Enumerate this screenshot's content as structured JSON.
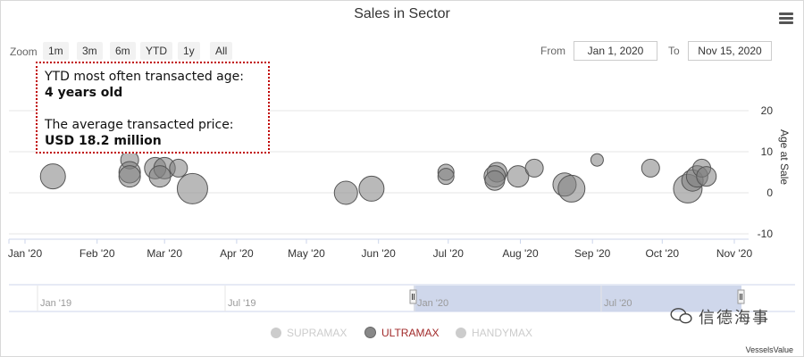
{
  "title": "Sales in Sector",
  "zoom": {
    "label": "Zoom",
    "buttons": [
      "1m",
      "3m",
      "6m",
      "YTD",
      "1y",
      "All"
    ]
  },
  "range": {
    "from_label": "From",
    "from_value": "Jan 1, 2020",
    "to_label": "To",
    "to_value": "Nov 15, 2020"
  },
  "annotation": {
    "line1": "YTD most often transacted age:",
    "line2": "4 years old",
    "line3": "The average transacted price:",
    "line4": "USD 18.2 million"
  },
  "navigator": {
    "labels": [
      "Jan '19",
      "Jul '19",
      "Jan '20",
      "Jul '20"
    ]
  },
  "legend": [
    {
      "name": "SUPRAMAX",
      "color": "#cccccc",
      "active": false
    },
    {
      "name": "ULTRAMAX",
      "color": "#888888",
      "active": true
    },
    {
      "name": "HANDYMAX",
      "color": "#cccccc",
      "active": false
    }
  ],
  "watermark": "信德海事",
  "credits": "VesselsValue",
  "chart_data": {
    "type": "scatter",
    "title": "Sales in Sector",
    "xlabel": "",
    "ylabel": "Age at Sale",
    "ylim": [
      -10,
      20
    ],
    "yticks": [
      -10,
      0,
      10,
      20
    ],
    "xlim": [
      "2020-01-01",
      "2020-11-15"
    ],
    "xticks": [
      {
        "date": "2020-01-01",
        "label": "Jan '20"
      },
      {
        "date": "2020-02-01",
        "label": "Feb '20"
      },
      {
        "date": "2020-03-01",
        "label": "Mar '20"
      },
      {
        "date": "2020-04-01",
        "label": "Apr '20"
      },
      {
        "date": "2020-05-01",
        "label": "May '20"
      },
      {
        "date": "2020-06-01",
        "label": "Jun '20"
      },
      {
        "date": "2020-07-01",
        "label": "Jul '20"
      },
      {
        "date": "2020-08-01",
        "label": "Aug '20"
      },
      {
        "date": "2020-09-01",
        "label": "Sep '20"
      },
      {
        "date": "2020-10-01",
        "label": "Oct '20"
      },
      {
        "date": "2020-11-01",
        "label": "Nov '20"
      }
    ],
    "series": [
      {
        "name": "ULTRAMAX",
        "color": "#808080",
        "points": [
          {
            "x": "2020-01-13",
            "y": 4,
            "z": 14
          },
          {
            "x": "2020-02-15",
            "y": 8,
            "z": 10
          },
          {
            "x": "2020-02-15",
            "y": 5,
            "z": 12
          },
          {
            "x": "2020-02-15",
            "y": 4,
            "z": 12
          },
          {
            "x": "2020-02-26",
            "y": 6,
            "z": 12
          },
          {
            "x": "2020-03-01",
            "y": 6,
            "z": 12
          },
          {
            "x": "2020-02-28",
            "y": 4,
            "z": 12
          },
          {
            "x": "2020-03-07",
            "y": 6,
            "z": 10
          },
          {
            "x": "2020-03-13",
            "y": 1,
            "z": 17
          },
          {
            "x": "2020-05-18",
            "y": 0,
            "z": 13
          },
          {
            "x": "2020-05-29",
            "y": 1,
            "z": 14
          },
          {
            "x": "2020-06-30",
            "y": 5,
            "z": 9
          },
          {
            "x": "2020-06-30",
            "y": 4,
            "z": 9
          },
          {
            "x": "2020-07-22",
            "y": 5,
            "z": 11
          },
          {
            "x": "2020-07-21",
            "y": 4,
            "z": 12
          },
          {
            "x": "2020-07-21",
            "y": 3,
            "z": 11
          },
          {
            "x": "2020-07-31",
            "y": 4,
            "z": 12
          },
          {
            "x": "2020-08-07",
            "y": 6,
            "z": 10
          },
          {
            "x": "2020-08-20",
            "y": 2,
            "z": 13
          },
          {
            "x": "2020-08-23",
            "y": 1,
            "z": 15
          },
          {
            "x": "2020-09-03",
            "y": 8,
            "z": 7
          },
          {
            "x": "2020-09-26",
            "y": 6,
            "z": 10
          },
          {
            "x": "2020-10-12",
            "y": 1,
            "z": 16
          },
          {
            "x": "2020-10-14",
            "y": 3,
            "z": 12
          },
          {
            "x": "2020-10-16",
            "y": 4,
            "z": 12
          },
          {
            "x": "2020-10-18",
            "y": 6,
            "z": 10
          },
          {
            "x": "2020-10-20",
            "y": 4,
            "z": 11
          }
        ]
      }
    ]
  }
}
